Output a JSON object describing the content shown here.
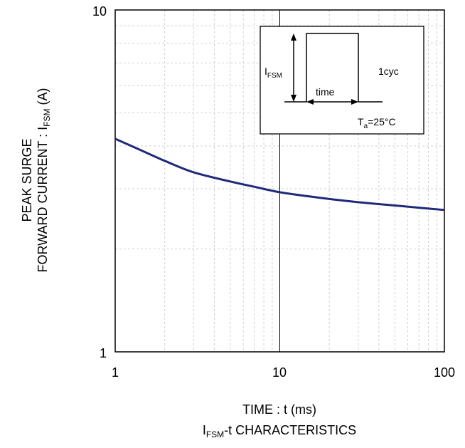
{
  "chart_data": {
    "type": "line",
    "xscale": "log",
    "yscale": "log",
    "xlim": [
      1,
      100
    ],
    "ylim": [
      1,
      10
    ],
    "grid": true,
    "xticks": [
      "1",
      "10",
      "100"
    ],
    "yticks": [
      "1",
      "10"
    ],
    "xlabel": "TIME : t (ms)",
    "title": {
      "prefix": "I",
      "sub": "FSM",
      "suffix": "-t CHARACTERISTICS"
    },
    "ylabel": {
      "line1": "PEAK SURGE",
      "line2_prefix": "FORWARD CURRENT : I",
      "line2_sub": "FSM",
      "line2_suffix": " (A)"
    },
    "series": [
      {
        "color": "#1f2a7a",
        "x": [
          1,
          1.5,
          2,
          3,
          5,
          7,
          10,
          15,
          20,
          30,
          50,
          70,
          100
        ],
        "y": [
          4.2,
          3.85,
          3.62,
          3.35,
          3.15,
          3.04,
          2.93,
          2.85,
          2.8,
          2.74,
          2.68,
          2.64,
          2.6
        ]
      }
    ],
    "inset": {
      "i_prefix": "I",
      "i_sub": "FSM",
      "time_label": "time",
      "cycle_label": "1cyc",
      "temp_prefix": "T",
      "temp_sub": "a",
      "temp_suffix": "=25°C"
    }
  }
}
